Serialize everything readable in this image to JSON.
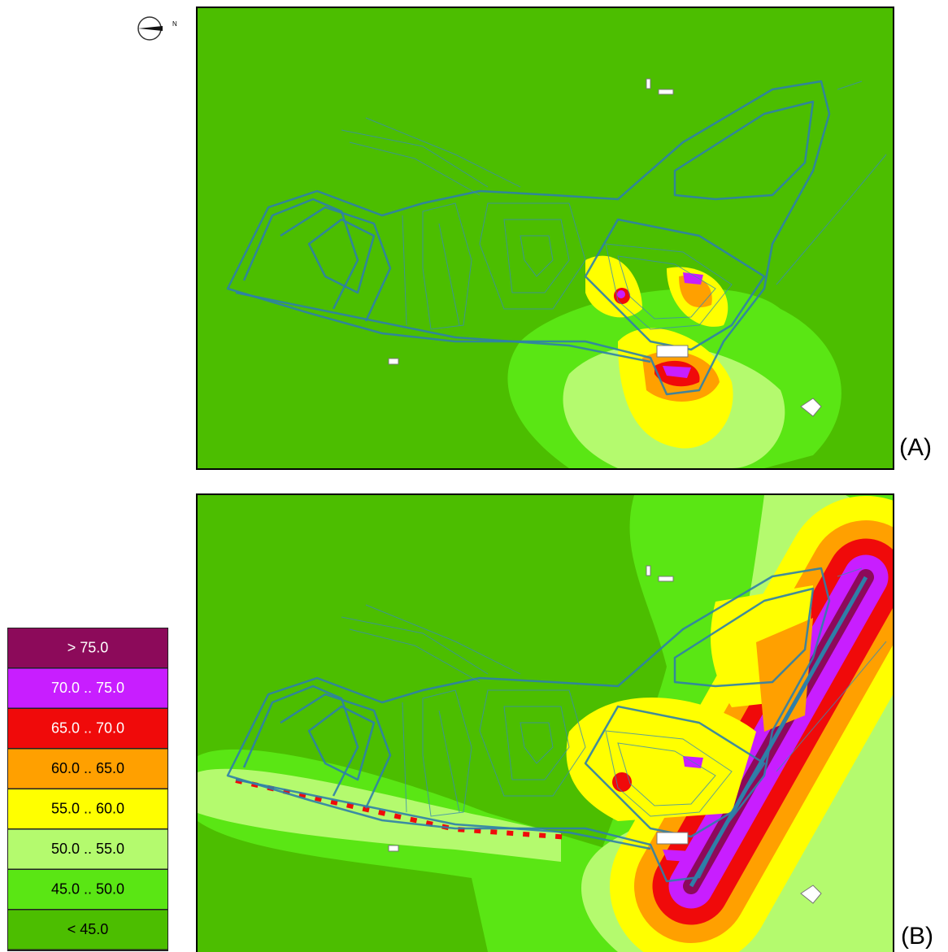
{
  "north_label": "N",
  "panels": [
    {
      "label": "(A)"
    },
    {
      "label": "(B)"
    }
  ],
  "legend": {
    "items": [
      {
        "label": "> 75.0",
        "color": "#8c0a5a"
      },
      {
        "label": "70.0 .. 75.0",
        "color": "#c81eff"
      },
      {
        "label": "65.0 .. 70.0",
        "color": "#f00a0a"
      },
      {
        "label": "60.0 .. 65.0",
        "color": "#ffa000"
      },
      {
        "label": "55.0 .. 60.0",
        "color": "#ffff00"
      },
      {
        "label": "50.0 .. 55.0",
        "color": "#b4fa6e"
      },
      {
        "label": "45.0 .. 50.0",
        "color": "#5ae614"
      },
      {
        "label": "< 45.0",
        "color": "#4cbe00"
      }
    ]
  }
}
